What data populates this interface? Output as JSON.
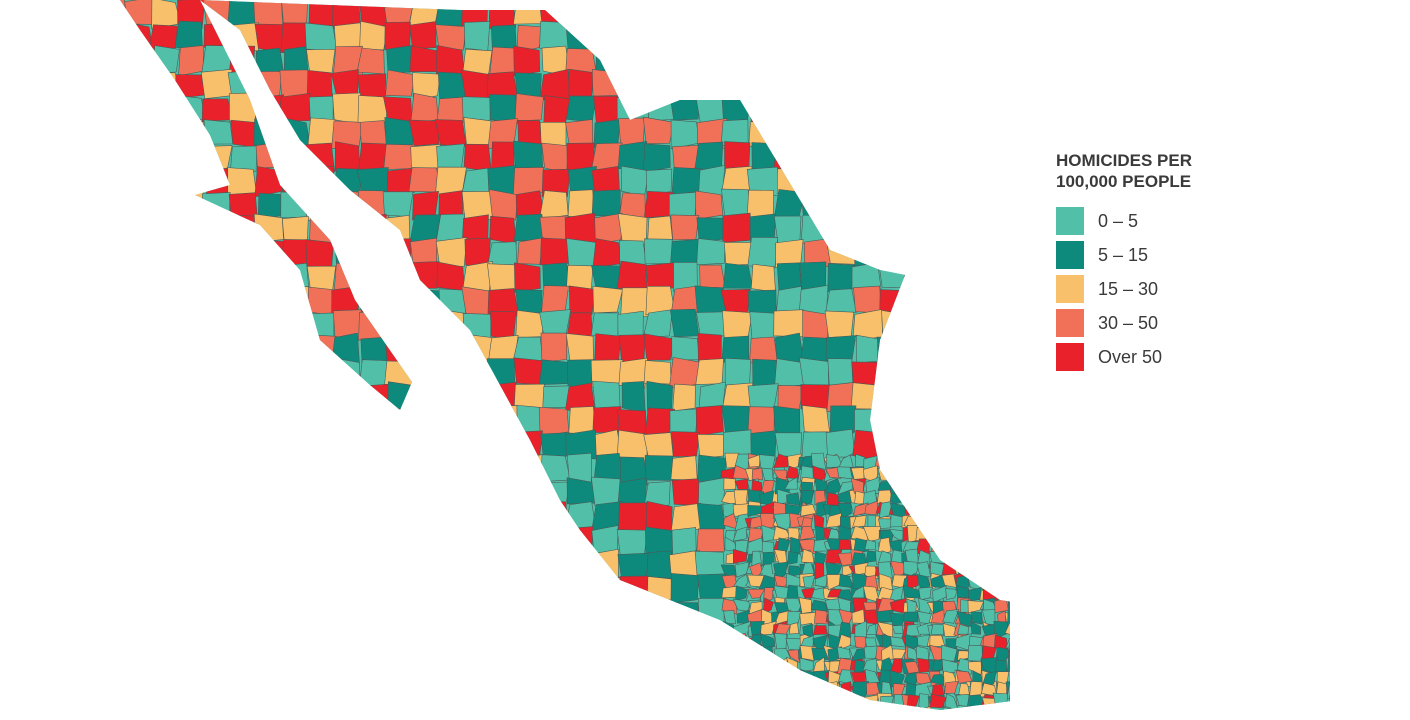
{
  "legend": {
    "title": "HOMICIDES PER 100,000 PEOPLE",
    "items": [
      {
        "label": "0 – 5",
        "color": "#52c0a8"
      },
      {
        "label": "5 – 15",
        "color": "#0e8a7d"
      },
      {
        "label": "15 – 30",
        "color": "#f9c06b"
      },
      {
        "label": "30 – 50",
        "color": "#f07158"
      },
      {
        "label": "Over 50",
        "color": "#e8212b"
      }
    ]
  }
}
